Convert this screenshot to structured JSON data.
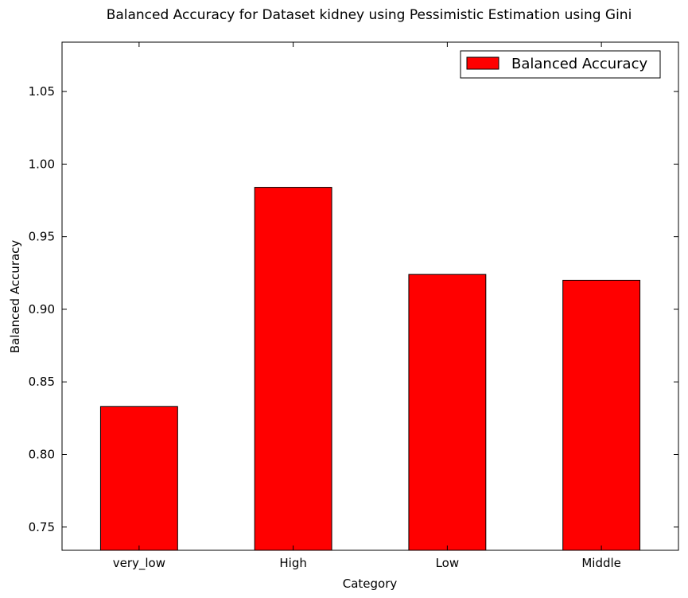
{
  "chart_data": {
    "type": "bar",
    "title": "Balanced Accuracy for Dataset kidney using Pessimistic Estimation using Gini",
    "xlabel": "Category",
    "ylabel": "Balanced Accuracy",
    "categories": [
      "very_low",
      "High",
      "Low",
      "Middle"
    ],
    "series": [
      {
        "name": "Balanced Accuracy",
        "values": [
          0.833,
          0.984,
          0.924,
          0.92
        ],
        "color": "#ff0000"
      }
    ],
    "ylim": [
      0.734,
      1.084
    ],
    "yticks": [
      0.75,
      0.8,
      0.85,
      0.9,
      0.95,
      1.0,
      1.05
    ],
    "ytick_labels": [
      "0.75",
      "0.80",
      "0.85",
      "0.90",
      "0.95",
      "1.00",
      "1.05"
    ],
    "grid": false,
    "legend_position": "top-right"
  }
}
